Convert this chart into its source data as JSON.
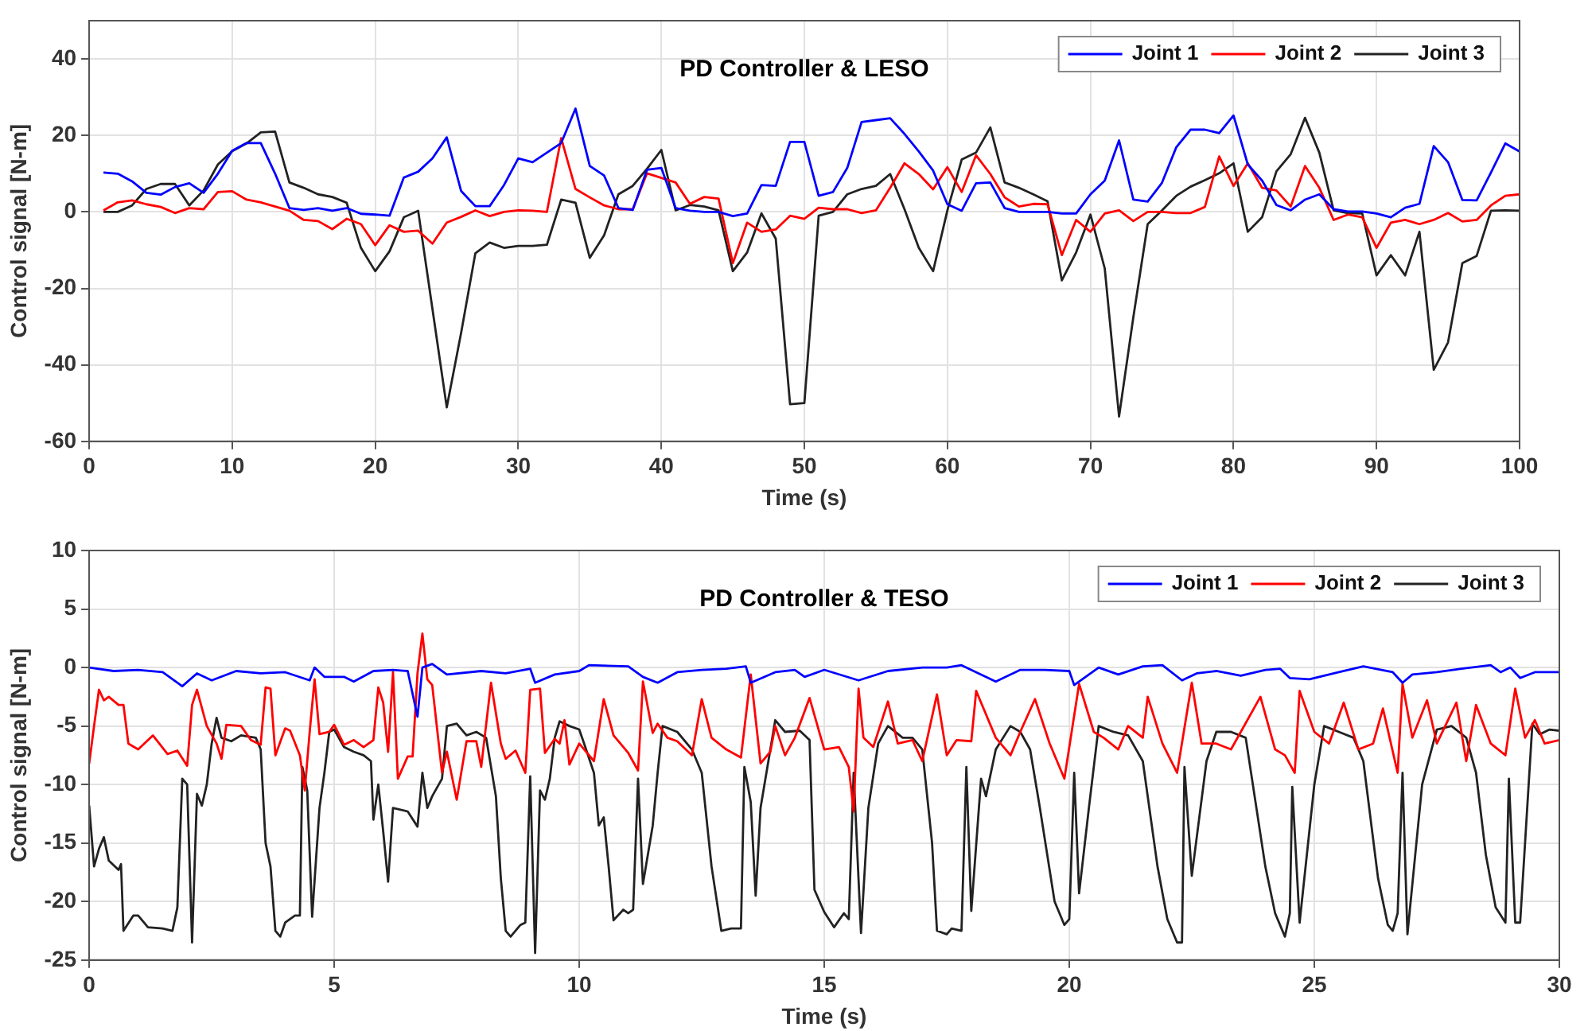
{
  "chart_data": [
    {
      "type": "line",
      "title": "PD Controller & LESO",
      "xlabel": "Time (s)",
      "ylabel": "Control signal [N-m]",
      "x": [
        1,
        2,
        3,
        4,
        5,
        6,
        7,
        8,
        9,
        10,
        11,
        12,
        13,
        14,
        15,
        16,
        17,
        18,
        19,
        20,
        21,
        22,
        23,
        24,
        25,
        26,
        27,
        28,
        29,
        30,
        31,
        32,
        33,
        34,
        35,
        36,
        37,
        38,
        39,
        40,
        41,
        42,
        43,
        44,
        45,
        46,
        47,
        48,
        49,
        50,
        51,
        52,
        53,
        54,
        55,
        56,
        57,
        58,
        59,
        60,
        61,
        62,
        63,
        64,
        65,
        66,
        67,
        68,
        69,
        70,
        71,
        72,
        73,
        74,
        75,
        76,
        77,
        78,
        79,
        80,
        81,
        82,
        83,
        84,
        85,
        86,
        87,
        88,
        89,
        90,
        91,
        92,
        93,
        94,
        95,
        96,
        97,
        98,
        99,
        100
      ],
      "series": [
        {
          "name": "Joint 1",
          "color": "#0000ff",
          "values": [
            10.3,
            10,
            8,
            5,
            4.5,
            6.5,
            7.5,
            5,
            10,
            16,
            18,
            18,
            10,
            1,
            0.5,
            1,
            0.3,
            1,
            -0.5,
            -0.7,
            -1,
            9,
            10.5,
            14,
            19.5,
            5.5,
            1.5,
            1.5,
            7,
            14,
            13,
            15.5,
            18,
            27,
            12,
            9.5,
            1,
            0.5,
            11,
            11.5,
            1,
            0.3,
            0,
            0,
            -1.1,
            -0.4,
            7,
            6.8,
            18.3,
            18.3,
            4.2,
            5.2,
            11.5,
            23.5,
            24,
            24.5,
            20.4,
            15.8,
            10.8,
            2,
            0.3,
            7.5,
            7.7,
            1,
            0,
            0,
            0,
            -0.4,
            -0.4,
            4.6,
            8.2,
            18.7,
            3.2,
            2.7,
            7.6,
            16.9,
            21.5,
            21.5,
            20.6,
            25.2,
            12.4,
            8.2,
            1.8,
            0.4,
            3.2,
            4.6,
            0.7,
            0.1,
            0.1,
            -0.4,
            -1.4,
            1.1,
            2.1,
            17.2,
            13,
            3.1,
            3,
            10.3,
            17.9,
            15.8
          ]
        },
        {
          "name": "Joint 2",
          "color": "#ff0000",
          "values": [
            0.4,
            2.5,
            3,
            2,
            1.3,
            -0.3,
            1,
            0.7,
            5.2,
            5.4,
            3.2,
            2.5,
            1.4,
            0.3,
            -2.1,
            -2.4,
            -4.5,
            -1.8,
            -3.2,
            -8.7,
            -3.5,
            -5.2,
            -4.9,
            -8.3,
            -2.8,
            -1.3,
            0.4,
            -1.1,
            0,
            0.4,
            0.3,
            0,
            19.3,
            6,
            3.8,
            1.7,
            0.7,
            0.7,
            10.1,
            8.9,
            7.7,
            2.1,
            3.9,
            3.5,
            -13.4,
            -2.8,
            -5.2,
            -4.6,
            -1,
            -1.8,
            1.1,
            0.7,
            0.7,
            -0.3,
            0.4,
            6.3,
            12.7,
            9.9,
            5.9,
            11.7,
            5.2,
            14.8,
            9.9,
            3.8,
            1.4,
            2.1,
            2,
            -11.3,
            -2.1,
            -5.2,
            -0.4,
            0.4,
            -2.4,
            0,
            0,
            -0.3,
            -0.3,
            1.3,
            14.5,
            6.8,
            12.7,
            6.3,
            5.6,
            1.4,
            12,
            6.3,
            -2.1,
            -0.7,
            -1.4,
            -9.4,
            -2.8,
            -2.1,
            -3.2,
            -2.1,
            -0.3,
            -2.5,
            -2.1,
            1.7,
            4.2,
            4.6
          ]
        },
        {
          "name": "Joint 3",
          "color": "#222222",
          "values": [
            0,
            0,
            1.7,
            6,
            7.3,
            7.3,
            1.7,
            5.6,
            12.4,
            15.9,
            17.9,
            20.8,
            21,
            7.7,
            6.3,
            4.6,
            3.9,
            2.4,
            -9.4,
            -15.5,
            -10.3,
            -1.4,
            0.3,
            -25.4,
            -51.1,
            -31.7,
            -10.8,
            -8,
            -9.4,
            -8.9,
            -8.9,
            -8.6,
            3.2,
            2.4,
            -12,
            -6.1,
            4.6,
            6.8,
            11.3,
            16.2,
            0.4,
            1.8,
            1.4,
            0.4,
            -15.5,
            -10.6,
            -0.4,
            -7,
            -50.3,
            -50,
            -1,
            0,
            4.6,
            6,
            6.8,
            9.9,
            0.7,
            -9.4,
            -15.5,
            0.4,
            13.7,
            15.5,
            22.1,
            7.7,
            6.3,
            4.6,
            2.8,
            -17.9,
            -10.6,
            -0.7,
            -14.8,
            -53.5,
            -27.5,
            -3.2,
            0.4,
            4.2,
            6.6,
            8.3,
            10.1,
            12.7,
            -5.2,
            -1.4,
            10.6,
            15.1,
            24.6,
            15.5,
            0.4,
            -0.3,
            -0.4,
            -16.6,
            -11.3,
            -16.6,
            -5.2,
            -41.3,
            -34.1,
            -13.4,
            -11.5,
            0.3,
            0.4,
            0.3
          ]
        }
      ],
      "xlim": [
        0,
        100
      ],
      "xticks": [
        0,
        10,
        20,
        30,
        40,
        50,
        60,
        70,
        80,
        90,
        100
      ],
      "ylim": [
        -60,
        50
      ],
      "yticks": [
        -60,
        -40,
        -20,
        0,
        20,
        40
      ],
      "grid": true,
      "legend": "top right",
      "marker": "none",
      "line_style": "solid"
    },
    {
      "type": "line",
      "title": "PD Controller & TESO",
      "xlabel": "Time (s)",
      "ylabel": "Control signal [N-m]",
      "series": [
        {
          "name": "Joint 1",
          "color": "#0000ff",
          "x": [
            0,
            0.5,
            1,
            1.5,
            1.9,
            2.2,
            2.5,
            3,
            3.5,
            4,
            4.5,
            4.6,
            4.8,
            5.2,
            5.4,
            5.8,
            6.2,
            6.5,
            6.7,
            6.8,
            7,
            7.3,
            8,
            8.5,
            9,
            9.1,
            9.5,
            10,
            10.2,
            11,
            11.3,
            11.6,
            12,
            12.5,
            13,
            13.4,
            13.5,
            14,
            14.4,
            14.6,
            15,
            15.7,
            16.3,
            17,
            17.5,
            17.8,
            18.2,
            18.5,
            19,
            19.5,
            20,
            20.1,
            20.6,
            21,
            21.5,
            21.9,
            22.3,
            22.6,
            23,
            23.5,
            24,
            24.3,
            24.5,
            24.9,
            25.5,
            26,
            26.6,
            26.8,
            27,
            27.5,
            28,
            28.6,
            28.8,
            29,
            29.2,
            29.5,
            30
          ],
          "values": [
            0,
            -0.3,
            -0.2,
            -0.4,
            -1.6,
            -0.5,
            -1.1,
            -0.3,
            -0.5,
            -0.4,
            -1.1,
            0,
            -0.8,
            -0.8,
            -1.2,
            -0.3,
            -0.2,
            -0.3,
            -4.2,
            0,
            0.3,
            -0.6,
            -0.3,
            -0.5,
            -0.1,
            -1.3,
            -0.6,
            -0.3,
            0.2,
            0.1,
            -0.8,
            -1.3,
            -0.4,
            -0.2,
            -0.1,
            0.1,
            -1.3,
            -0.4,
            -0.2,
            -0.8,
            -0.2,
            -1.1,
            -0.3,
            0,
            0,
            0.2,
            -0.6,
            -1.2,
            -0.2,
            -0.2,
            -0.3,
            -1.5,
            0,
            -0.6,
            0.1,
            0.2,
            -1.1,
            -0.5,
            -0.3,
            -0.7,
            -0.2,
            -0.1,
            -0.9,
            -1,
            -0.4,
            0.1,
            -0.4,
            -1.3,
            -0.6,
            -0.4,
            -0.1,
            0.2,
            -0.4,
            0,
            -0.9,
            -0.4,
            -0.4
          ]
        },
        {
          "name": "Joint 2",
          "color": "#ff0000",
          "x": [
            0,
            0.1,
            0.2,
            0.3,
            0.4,
            0.6,
            0.7,
            0.8,
            1,
            1.3,
            1.6,
            1.8,
            2,
            2.1,
            2.2,
            2.4,
            2.6,
            2.7,
            2.8,
            3.1,
            3.3,
            3.5,
            3.6,
            3.7,
            3.8,
            4,
            4.1,
            4.3,
            4.4,
            4.5,
            4.6,
            4.7,
            4.9,
            5,
            5.2,
            5.4,
            5.6,
            5.8,
            5.9,
            6,
            6.1,
            6.2,
            6.3,
            6.5,
            6.6,
            6.7,
            6.8,
            6.9,
            7,
            7.2,
            7.3,
            7.5,
            7.7,
            7.9,
            8,
            8.2,
            8.4,
            8.5,
            8.7,
            8.9,
            9,
            9.2,
            9.3,
            9.5,
            9.6,
            9.7,
            9.8,
            10,
            10.3,
            10.5,
            10.7,
            11,
            11.2,
            11.3,
            11.5,
            11.6,
            11.8,
            12,
            12.3,
            12.5,
            12.7,
            13,
            13.3,
            13.5,
            13.7,
            13.9,
            14,
            14.2,
            14.4,
            14.7,
            15,
            15.3,
            15.5,
            15.6,
            15.7,
            15.8,
            16,
            16.3,
            16.5,
            16.8,
            17,
            17.3,
            17.5,
            17.7,
            18,
            18.1,
            18.5,
            18.8,
            19,
            19.3,
            19.6,
            19.9,
            20.2,
            20.5,
            20.7,
            21,
            21.2,
            21.5,
            21.6,
            21.9,
            22.2,
            22.5,
            22.7,
            23,
            23.3,
            23.9,
            24.2,
            24.4,
            24.6,
            24.7,
            25,
            25.3,
            25.6,
            25.9,
            26.2,
            26.4,
            26.7,
            26.8,
            27,
            27.3,
            27.5,
            27.9,
            28.1,
            28.3,
            28.6,
            28.9,
            29.1,
            29.3,
            29.5,
            29.7,
            30
          ],
          "values": [
            -8.2,
            -5,
            -1.9,
            -2.8,
            -2.5,
            -3.2,
            -3.2,
            -6.5,
            -7,
            -5.8,
            -7.4,
            -7.1,
            -8.4,
            -3.2,
            -1.9,
            -5,
            -6.5,
            -7.8,
            -4.9,
            -5,
            -6.2,
            -6.6,
            -1.7,
            -1.8,
            -7.5,
            -5.2,
            -5.4,
            -7.5,
            -10.5,
            -5.5,
            -1,
            -5.7,
            -5.5,
            -4.9,
            -6.6,
            -6.2,
            -6.8,
            -6.2,
            -1.7,
            -3,
            -7.2,
            -0.4,
            -9.5,
            -7.6,
            -7.6,
            -0.5,
            2.9,
            -1,
            -1.5,
            -9,
            -7.2,
            -11.3,
            -6.3,
            -6.3,
            -8.5,
            -1.3,
            -6.5,
            -7.8,
            -7.1,
            -9,
            -1.9,
            -1.8,
            -7.3,
            -6.1,
            -6.5,
            -4.5,
            -8.3,
            -6.5,
            -8,
            -2.7,
            -5.8,
            -7.3,
            -8.8,
            -1.2,
            -5.6,
            -4.8,
            -6,
            -6.3,
            -7.5,
            -2.7,
            -6,
            -7,
            -7.7,
            -0.6,
            -8.2,
            -7.2,
            -5,
            -7.5,
            -6,
            -2.6,
            -7,
            -6.8,
            -8.5,
            -12.3,
            -1.8,
            -6,
            -6.8,
            -2.9,
            -6.5,
            -6.2,
            -8,
            -2.3,
            -7.5,
            -6.2,
            -6.3,
            -2,
            -6,
            -7.5,
            -5.5,
            -2.7,
            -6.5,
            -9.5,
            -1.4,
            -5.5,
            -6,
            -7,
            -5,
            -6,
            -2.5,
            -6.5,
            -9,
            -1.3,
            -6.5,
            -6.5,
            -7,
            -2.5,
            -7,
            -7.5,
            -9,
            -2,
            -5.5,
            -6.5,
            -3,
            -7,
            -6.5,
            -3.5,
            -9,
            -1.4,
            -6,
            -2.8,
            -6.5,
            -3,
            -8,
            -3.2,
            -6.5,
            -7.5,
            -1.8,
            -6,
            -4.5,
            -6.5,
            -6.2
          ]
        },
        {
          "name": "Joint 3",
          "color": "#222222",
          "x": [
            0,
            0.1,
            0.2,
            0.3,
            0.4,
            0.6,
            0.65,
            0.7,
            0.9,
            1,
            1.2,
            1.5,
            1.7,
            1.8,
            1.9,
            2,
            2.1,
            2.2,
            2.3,
            2.4,
            2.5,
            2.6,
            2.7,
            2.9,
            3.1,
            3.4,
            3.5,
            3.6,
            3.7,
            3.8,
            3.9,
            4,
            4.2,
            4.3,
            4.35,
            4.45,
            4.55,
            4.7,
            4.8,
            4.9,
            5,
            5.2,
            5.4,
            5.6,
            5.75,
            5.8,
            5.9,
            6,
            6.1,
            6.2,
            6.5,
            6.7,
            6.8,
            6.9,
            7,
            7.2,
            7.3,
            7.5,
            7.7,
            7.9,
            8.1,
            8.3,
            8.4,
            8.5,
            8.6,
            8.8,
            8.9,
            9,
            9.1,
            9.2,
            9.3,
            9.4,
            9.5,
            9.6,
            9.8,
            10,
            10.1,
            10.3,
            10.4,
            10.5,
            10.6,
            10.7,
            10.9,
            11,
            11.1,
            11.2,
            11.3,
            11.5,
            11.6,
            11.7,
            12,
            12.3,
            12.5,
            12.7,
            12.9,
            13.1,
            13.3,
            13.37,
            13.5,
            13.6,
            13.7,
            13.9,
            14,
            14.2,
            14.5,
            14.7,
            14.8,
            15,
            15.2,
            15.4,
            15.5,
            15.6,
            15.75,
            15.9,
            16.1,
            16.3,
            16.6,
            16.8,
            17,
            17.2,
            17.3,
            17.5,
            17.6,
            17.8,
            17.9,
            18,
            18.2,
            18.3,
            18.5,
            18.8,
            19,
            19.2,
            19.4,
            19.7,
            19.9,
            20,
            20.1,
            20.2,
            20.4,
            20.6,
            20.9,
            21.2,
            21.5,
            21.8,
            22,
            22.2,
            22.3,
            22.35,
            22.5,
            22.8,
            23,
            23.3,
            23.6,
            24,
            24.2,
            24.4,
            24.5,
            24.55,
            24.7,
            25,
            25.2,
            25.5,
            25.8,
            26,
            26.3,
            26.5,
            26.6,
            26.7,
            26.8,
            26.9,
            27.2,
            27.5,
            27.8,
            28.1,
            28.3,
            28.5,
            28.7,
            28.9,
            28.97,
            29.1,
            29.2,
            29.3,
            29.45,
            29.6,
            29.8,
            30
          ],
          "values": [
            -11.8,
            -17,
            -15.5,
            -14.5,
            -16.5,
            -17.3,
            -16.8,
            -22.5,
            -21.2,
            -21.2,
            -22.2,
            -22.3,
            -22.5,
            -20.5,
            -9.5,
            -10,
            -23.5,
            -10.8,
            -11.8,
            -10,
            -6.5,
            -4.3,
            -6,
            -6.3,
            -5.8,
            -6,
            -7,
            -15,
            -17,
            -22.5,
            -23,
            -21.8,
            -21.2,
            -21.2,
            -8.5,
            -10.5,
            -21.3,
            -12,
            -9,
            -5.5,
            -5.3,
            -6.8,
            -7.2,
            -7.5,
            -8,
            -13,
            -10,
            -14,
            -18.3,
            -12,
            -12.3,
            -13.6,
            -9,
            -12,
            -11,
            -9.5,
            -5,
            -4.8,
            -5.8,
            -5.5,
            -6,
            -11,
            -18,
            -22.5,
            -23,
            -22,
            -21.8,
            -9.3,
            -24.4,
            -10.5,
            -11.3,
            -9.5,
            -6,
            -4.6,
            -5,
            -5.3,
            -6.5,
            -9,
            -13.5,
            -12.8,
            -17,
            -21.6,
            -20.7,
            -21,
            -20.7,
            -9.5,
            -18.5,
            -13.5,
            -9,
            -5,
            -5.5,
            -7,
            -9,
            -17,
            -22.5,
            -22.3,
            -22.3,
            -8.5,
            -11.5,
            -19.5,
            -12,
            -7,
            -4.5,
            -5.5,
            -5.4,
            -6.2,
            -19,
            -20.9,
            -22.2,
            -21,
            -21.5,
            -9,
            -22.7,
            -12,
            -6.5,
            -5,
            -6,
            -6,
            -7,
            -15,
            -22.5,
            -22.8,
            -22.3,
            -22.5,
            -8.5,
            -20.8,
            -9.5,
            -11,
            -7,
            -5,
            -5.5,
            -7,
            -12,
            -20,
            -22,
            -21.5,
            -9,
            -19.3,
            -12,
            -5,
            -5.5,
            -5.8,
            -8,
            -17,
            -21.5,
            -23.5,
            -23.5,
            -8.5,
            -17.8,
            -8,
            -5.5,
            -5.5,
            -6,
            -17,
            -21,
            -23,
            -21,
            -10.2,
            -21.8,
            -10,
            -5,
            -5.5,
            -6,
            -8,
            -18,
            -22,
            -22.5,
            -21,
            -9,
            -22.8,
            -10,
            -5.3,
            -5,
            -6,
            -9,
            -16,
            -20.5,
            -21.8,
            -9.5,
            -21.8,
            -21.8,
            -15,
            -4.8,
            -5.7,
            -5.3,
            -5.4
          ]
        }
      ],
      "xlim": [
        0,
        30
      ],
      "xticks": [
        0,
        5,
        10,
        15,
        20,
        25,
        30
      ],
      "ylim": [
        -25,
        10
      ],
      "yticks": [
        -25,
        -20,
        -15,
        -10,
        -5,
        0,
        5,
        10
      ],
      "grid": true,
      "legend": "top right",
      "marker": "none",
      "line_style": "solid"
    }
  ]
}
